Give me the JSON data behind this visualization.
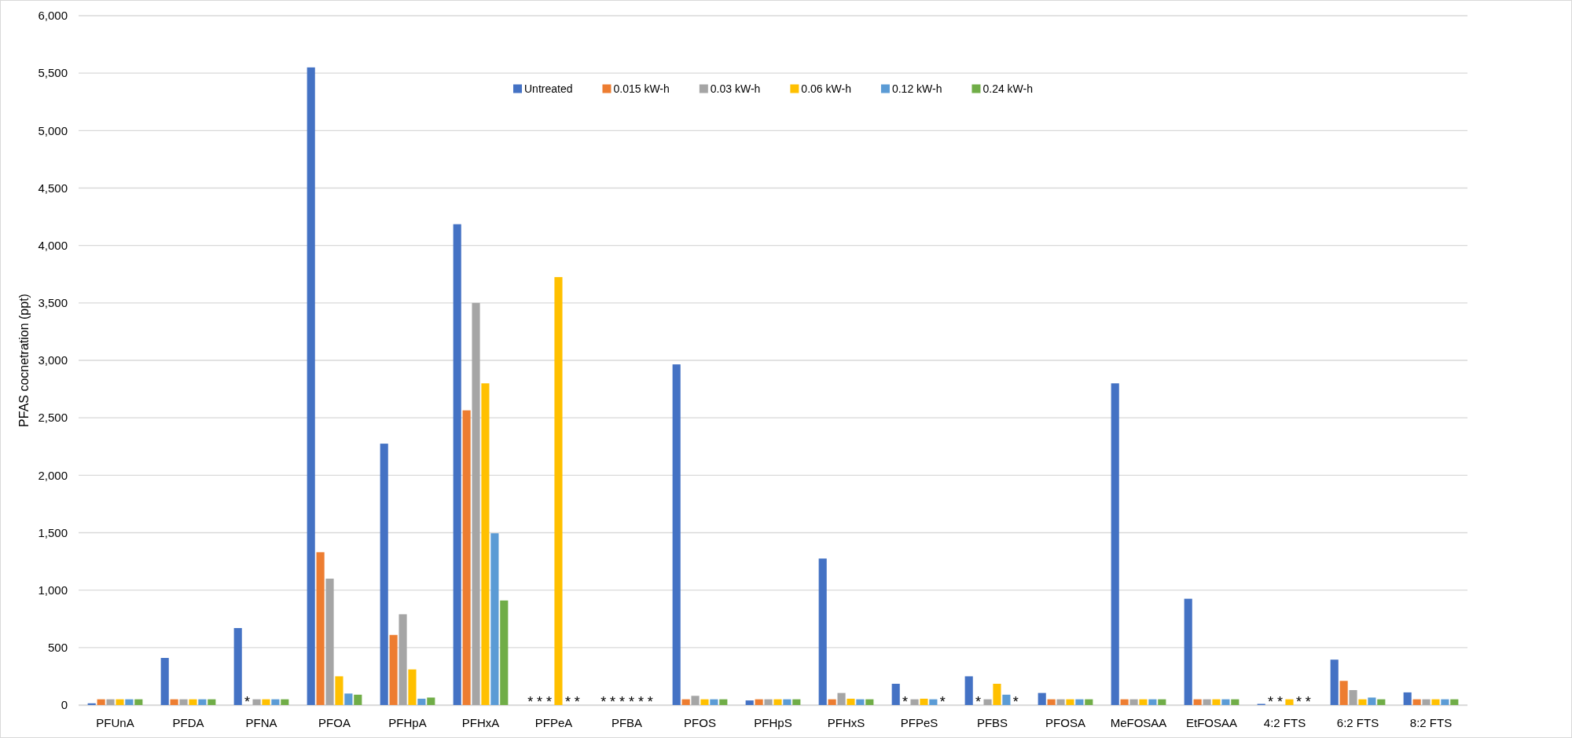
{
  "chart_data": {
    "type": "bar",
    "ylabel": "PFAS cocnetration (ppt)",
    "categories": [
      "PFUnA",
      "PFDA",
      "PFNA",
      "PFOA",
      "PFHpA",
      "PFHxA",
      "PFPeA",
      "PFBA",
      "PFOS",
      "PFHpS",
      "PFHxS",
      "PFPeS",
      "PFBS",
      "PFOSA",
      "MeFOSAA",
      "EtFOSAA",
      "4:2 FTS",
      "6:2 FTS",
      "8:2 FTS"
    ],
    "series": [
      {
        "name": "Untreated",
        "color": "#4472c4",
        "values": [
          15,
          410,
          670,
          5550,
          2275,
          4185,
          null,
          null,
          2965,
          40,
          1275,
          185,
          250,
          105,
          2800,
          925,
          10,
          395,
          110
        ],
        "value_labels": [
          null,
          null,
          null,
          null,
          null,
          null,
          "*",
          "*",
          null,
          null,
          null,
          null,
          null,
          null,
          null,
          null,
          null,
          null,
          null
        ]
      },
      {
        "name": "0.015 kW-h",
        "color": "#ed7d31",
        "values": [
          50,
          50,
          null,
          1330,
          610,
          2565,
          null,
          null,
          50,
          50,
          50,
          null,
          null,
          50,
          50,
          50,
          null,
          210,
          50
        ],
        "value_labels": [
          null,
          null,
          "*",
          null,
          null,
          null,
          "*",
          "*",
          null,
          null,
          null,
          "*",
          "*",
          null,
          null,
          null,
          "*",
          null,
          null
        ]
      },
      {
        "name": "0.03 kW-h",
        "color": "#a5a5a5",
        "values": [
          50,
          50,
          50,
          1100,
          790,
          3500,
          null,
          null,
          80,
          50,
          105,
          50,
          50,
          50,
          50,
          50,
          null,
          130,
          50
        ],
        "value_labels": [
          null,
          null,
          null,
          null,
          null,
          null,
          "*",
          "*",
          null,
          null,
          null,
          null,
          null,
          null,
          null,
          null,
          "*",
          null,
          null
        ]
      },
      {
        "name": "0.06 kW-h",
        "color": "#ffc000",
        "values": [
          50,
          50,
          50,
          250,
          310,
          2800,
          3725,
          null,
          50,
          50,
          55,
          55,
          185,
          50,
          50,
          50,
          50,
          50,
          50
        ],
        "value_labels": [
          null,
          null,
          null,
          null,
          null,
          null,
          null,
          "*",
          null,
          null,
          null,
          null,
          null,
          null,
          null,
          null,
          null,
          null,
          null
        ]
      },
      {
        "name": "0.12 kW-h",
        "color": "#5b9bd5",
        "values": [
          50,
          50,
          50,
          100,
          55,
          1495,
          null,
          null,
          50,
          50,
          50,
          50,
          90,
          50,
          50,
          50,
          null,
          65,
          50
        ],
        "value_labels": [
          null,
          null,
          null,
          null,
          null,
          null,
          "*",
          "*",
          null,
          null,
          null,
          null,
          null,
          null,
          null,
          null,
          "*",
          null,
          null
        ]
      },
      {
        "name": "0.24 kW-h",
        "color": "#70ad47",
        "values": [
          50,
          50,
          50,
          90,
          65,
          910,
          null,
          null,
          50,
          50,
          50,
          null,
          null,
          50,
          50,
          50,
          null,
          50,
          50
        ],
        "value_labels": [
          null,
          null,
          null,
          null,
          null,
          null,
          "*",
          "*",
          null,
          null,
          null,
          "*",
          "*",
          null,
          null,
          null,
          "*",
          null,
          null
        ]
      }
    ],
    "ylim": [
      0,
      6000
    ],
    "yticks": [
      0,
      500,
      {
        "value": 1000,
        "label": "1,000"
      },
      {
        "value": 1500,
        "label": "1,500"
      },
      {
        "value": 2000,
        "label": "2,000"
      },
      {
        "value": 2500,
        "label": "2,500"
      },
      {
        "value": 3000,
        "label": "3,000"
      },
      {
        "value": 3500,
        "label": "3,500"
      },
      {
        "value": 4000,
        "label": "4,000"
      },
      {
        "value": 4500,
        "label": "4,500"
      },
      {
        "value": 5000,
        "label": "5,000"
      },
      {
        "value": 5500,
        "label": "5,500"
      },
      {
        "value": 6000,
        "label": "6,000"
      }
    ],
    "grid": "y",
    "legend": "top"
  }
}
